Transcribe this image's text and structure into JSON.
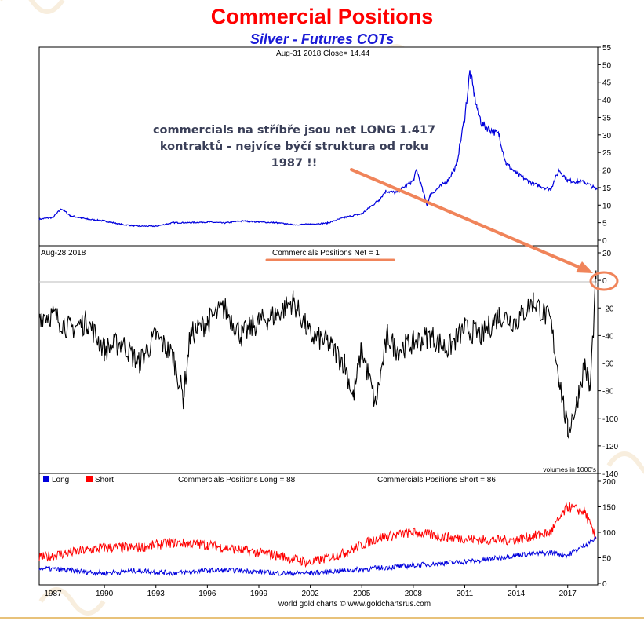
{
  "header": {
    "title": "Commercial Positions",
    "subtitle": "Silver - Futures COTs"
  },
  "annotation": {
    "lines": [
      "commercials na stříbře jsou net LONG 1.417",
      "kontraktů - nejvíce býčí struktura od roku",
      "1987 !!"
    ]
  },
  "footer": "world gold charts © www.goldchartsrus.com",
  "colors": {
    "price": "#0000dd",
    "net": "#000000",
    "long": "#0000dd",
    "short": "#ff0000",
    "arrow": "#f0845a",
    "title": "#ff0000",
    "subtitle": "#1a1ad6"
  },
  "chart_data": [
    {
      "type": "line",
      "panel": "price",
      "info": "Aug-31  2018   Close= 14.44",
      "x_ticks": [
        "1987",
        "1990",
        "1993",
        "1996",
        "1999",
        "2002",
        "2005",
        "2008",
        "2011",
        "2014",
        "2017"
      ],
      "ylim": [
        0,
        55
      ],
      "y_ticks": [
        0,
        5,
        10,
        15,
        20,
        25,
        30,
        35,
        40,
        45,
        50,
        55
      ],
      "series": [
        {
          "x": [
            1986.2,
            1987,
            1987.5,
            1988,
            1989,
            1990,
            1991,
            1992,
            1993,
            1994,
            1995,
            1996,
            1997,
            1998,
            1999,
            2000,
            2001,
            2002,
            2003,
            2004,
            2005,
            2006,
            2006.4,
            2007,
            2008,
            2008.2,
            2008.8,
            2009,
            2010,
            2010.5,
            2011,
            2011.3,
            2011.7,
            2012,
            2013,
            2013.4,
            2014,
            2015,
            2016,
            2016.5,
            2017,
            2018,
            2018.7
          ],
          "y": [
            6,
            6.5,
            9,
            7,
            6,
            5.5,
            4.5,
            4,
            4,
            5,
            5,
            5.2,
            4.9,
            5.5,
            5.2,
            5,
            4.4,
            4.6,
            4.9,
            6.5,
            7.5,
            11.5,
            14,
            13.5,
            17,
            20,
            10,
            13,
            17,
            21,
            35,
            48,
            38,
            33,
            30,
            22,
            19,
            16,
            14.5,
            20,
            17,
            16.5,
            14.44
          ]
        }
      ]
    },
    {
      "type": "line",
      "panel": "net",
      "info": "Aug-28  2018",
      "label": "Commercials Positions Net = 1",
      "note": "volumes in 1000's",
      "ylim": [
        -140,
        20
      ],
      "y_ticks": [
        -140,
        -120,
        -100,
        -80,
        -60,
        -40,
        -20,
        0,
        20
      ],
      "series": [
        {
          "x": [
            1986.2,
            1987,
            1988,
            1989,
            1990,
            1991,
            1992,
            1993,
            1994,
            1994.6,
            1995,
            1996,
            1997,
            1998,
            1999,
            2000,
            2001,
            2002,
            2003,
            2004,
            2004.5,
            2005,
            2005.8,
            2006.5,
            2007,
            2008,
            2009,
            2010,
            2011,
            2012,
            2013,
            2014,
            2015,
            2016,
            2016.5,
            2017,
            2017.5,
            2018,
            2018.3,
            2018.65
          ],
          "y": [
            -25,
            -25,
            -35,
            -30,
            -50,
            -45,
            -60,
            -40,
            -55,
            -85,
            -40,
            -30,
            -20,
            -40,
            -30,
            -25,
            -15,
            -40,
            -45,
            -60,
            -85,
            -50,
            -90,
            -40,
            -50,
            -45,
            -40,
            -50,
            -35,
            -40,
            -25,
            -30,
            -15,
            -30,
            -70,
            -110,
            -90,
            -60,
            -80,
            1
          ]
        }
      ]
    },
    {
      "type": "line",
      "panel": "long-short",
      "legend": [
        "Long",
        "Short"
      ],
      "long_label": "Commercials Positions Long = 88",
      "short_label": "Commercials Positions Short = 86",
      "ylim": [
        0,
        200
      ],
      "y_ticks": [
        0,
        50,
        100,
        150,
        200
      ],
      "series": [
        {
          "name": "Long",
          "x": [
            1986.2,
            1988,
            1990,
            1992,
            1994,
            1996,
            1998,
            2000,
            2002,
            2004,
            2006,
            2008,
            2010,
            2012,
            2014,
            2016,
            2017,
            2018,
            2018.65
          ],
          "y": [
            30,
            25,
            20,
            25,
            20,
            25,
            25,
            20,
            20,
            25,
            30,
            35,
            40,
            45,
            55,
            60,
            55,
            75,
            88
          ]
        },
        {
          "name": "Short",
          "x": [
            1986.2,
            1988,
            1990,
            1992,
            1994,
            1996,
            1998,
            2000,
            2002,
            2004,
            2006,
            2008,
            2010,
            2012,
            2014,
            2016,
            2017,
            2018,
            2018.65
          ],
          "y": [
            50,
            60,
            70,
            70,
            80,
            75,
            65,
            55,
            40,
            60,
            90,
            100,
            90,
            85,
            85,
            100,
            150,
            140,
            86
          ]
        }
      ]
    }
  ]
}
